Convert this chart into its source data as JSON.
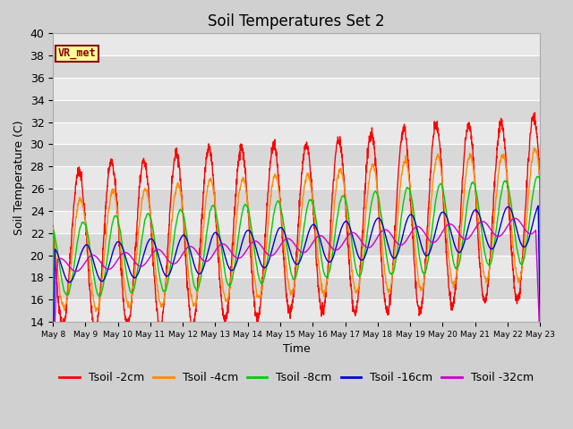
{
  "title": "Soil Temperatures Set 2",
  "xlabel": "Time",
  "ylabel": "Soil Temperature (C)",
  "ylim": [
    14,
    40
  ],
  "yticks": [
    14,
    16,
    18,
    20,
    22,
    24,
    26,
    28,
    30,
    32,
    34,
    36,
    38,
    40
  ],
  "xtick_labels": [
    "May 8",
    "May 9",
    "May 10",
    "May 11",
    "May 12",
    "May 13",
    "May 14",
    "May 15",
    "May 16",
    "May 17",
    "May 18",
    "May 19",
    "May 20",
    "May 21",
    "May 22",
    "May 23"
  ],
  "series_colors": [
    "#ff0000",
    "#ff8c00",
    "#00cc00",
    "#0000cd",
    "#cc00cc"
  ],
  "series_labels": [
    "Tsoil -2cm",
    "Tsoil -4cm",
    "Tsoil -8cm",
    "Tsoil -16cm",
    "Tsoil -32cm"
  ],
  "annotation_text": "VR_met",
  "annotation_color": "#8b0000",
  "annotation_bg": "#ffff99",
  "title_fontsize": 12,
  "axis_fontsize": 9,
  "legend_fontsize": 9,
  "n_days": 15,
  "n_pts_per_day": 144,
  "band_colors": [
    "#e8e8e8",
    "#d8d8d8"
  ],
  "fig_bg": "#d0d0d0"
}
